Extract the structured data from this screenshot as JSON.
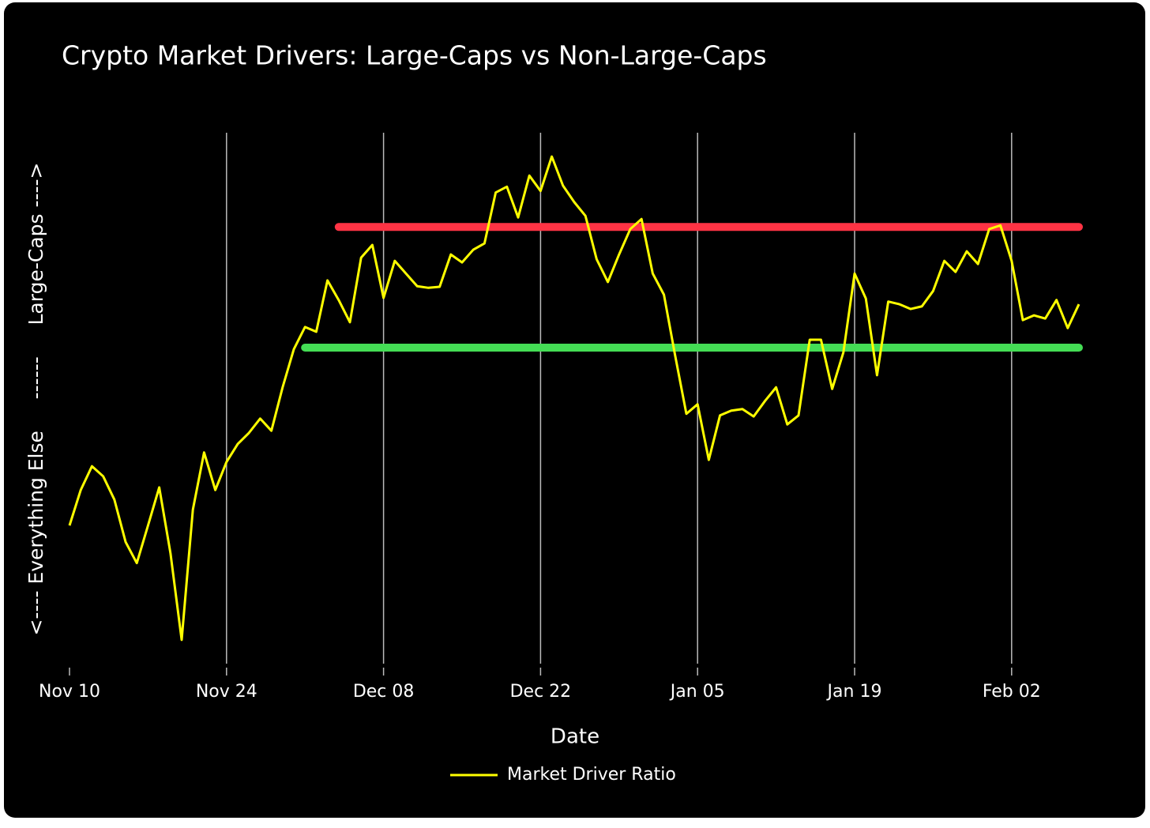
{
  "chart_data": {
    "type": "line",
    "title": "Crypto Market Drivers: Large-Caps vs Non-Large-Caps",
    "x_label": "Date",
    "y_label": "<---- Everything Else     ------     Large-Caps ---->",
    "categories": [
      "Nov 10",
      "Nov 11",
      "Nov 12",
      "Nov 13",
      "Nov 14",
      "Nov 15",
      "Nov 16",
      "Nov 17",
      "Nov 18",
      "Nov 19",
      "Nov 20",
      "Nov 21",
      "Nov 22",
      "Nov 23",
      "Nov 24",
      "Nov 25",
      "Nov 26",
      "Nov 27",
      "Nov 28",
      "Nov 29",
      "Nov 30",
      "Dec 01",
      "Dec 02",
      "Dec 03",
      "Dec 04",
      "Dec 05",
      "Dec 06",
      "Dec 07",
      "Dec 08",
      "Dec 09",
      "Dec 10",
      "Dec 11",
      "Dec 12",
      "Dec 13",
      "Dec 14",
      "Dec 15",
      "Dec 16",
      "Dec 17",
      "Dec 18",
      "Dec 19",
      "Dec 20",
      "Dec 21",
      "Dec 22",
      "Dec 23",
      "Dec 24",
      "Dec 25",
      "Dec 26",
      "Dec 27",
      "Dec 28",
      "Dec 29",
      "Dec 30",
      "Dec 31",
      "Jan 01",
      "Jan 02",
      "Jan 03",
      "Jan 04",
      "Jan 05",
      "Jan 06",
      "Jan 07",
      "Jan 08",
      "Jan 09",
      "Jan 10",
      "Jan 11",
      "Jan 12",
      "Jan 13",
      "Jan 14",
      "Jan 15",
      "Jan 16",
      "Jan 17",
      "Jan 18",
      "Jan 19",
      "Jan 20",
      "Jan 21",
      "Jan 22",
      "Jan 23",
      "Jan 24",
      "Jan 25",
      "Jan 26",
      "Jan 27",
      "Jan 28",
      "Jan 29",
      "Jan 30",
      "Jan 31",
      "Feb 01",
      "Feb 02",
      "Feb 03",
      "Feb 04",
      "Feb 05",
      "Feb 06",
      "Feb 07",
      "Feb 08"
    ],
    "series": [
      {
        "name": "Market Driver Ratio",
        "color": "#ffff00",
        "values": [
          26.1,
          32.8,
          37.3,
          35.4,
          31.0,
          23.0,
          19.0,
          26.1,
          33.3,
          20.9,
          4.5,
          29.1,
          39.9,
          32.8,
          38.1,
          41.5,
          43.6,
          46.3,
          44.0,
          52.2,
          59.4,
          63.6,
          62.7,
          72.4,
          68.7,
          64.5,
          76.7,
          79.1,
          69.1,
          76.1,
          73.7,
          71.3,
          71.0,
          71.2,
          77.3,
          75.8,
          78.2,
          79.4,
          89.0,
          90.1,
          84.3,
          92.2,
          89.3,
          95.8,
          90.3,
          87.2,
          84.6,
          76.4,
          72.1,
          77.3,
          82.1,
          84.0,
          73.7,
          69.7,
          58.2,
          47.2,
          49.0,
          38.5,
          46.9,
          47.8,
          48.1,
          46.7,
          49.6,
          52.2,
          45.2,
          46.9,
          61.2,
          61.2,
          51.9,
          58.8,
          73.7,
          69.0,
          54.5,
          68.4,
          67.9,
          67.0,
          67.5,
          70.4,
          76.1,
          74.0,
          77.9,
          75.5,
          82.1,
          82.8,
          76.1,
          64.9,
          65.8,
          65.2,
          68.7,
          63.4,
          67.9
        ]
      }
    ],
    "hlines": [
      {
        "y": 82.5,
        "x0": "Dec 04",
        "x1": "Feb 08",
        "color": "#ff3344"
      },
      {
        "y": 59.7,
        "x0": "Dec 01",
        "x1": "Feb 08",
        "color": "#44dd55"
      }
    ],
    "xticks": [
      "Nov 10",
      "Nov 24",
      "Dec 08",
      "Dec 22",
      "Jan 05",
      "Jan 19",
      "Feb 02"
    ],
    "ylim": [
      0,
      100
    ],
    "grid": true,
    "legend": "bottom"
  }
}
